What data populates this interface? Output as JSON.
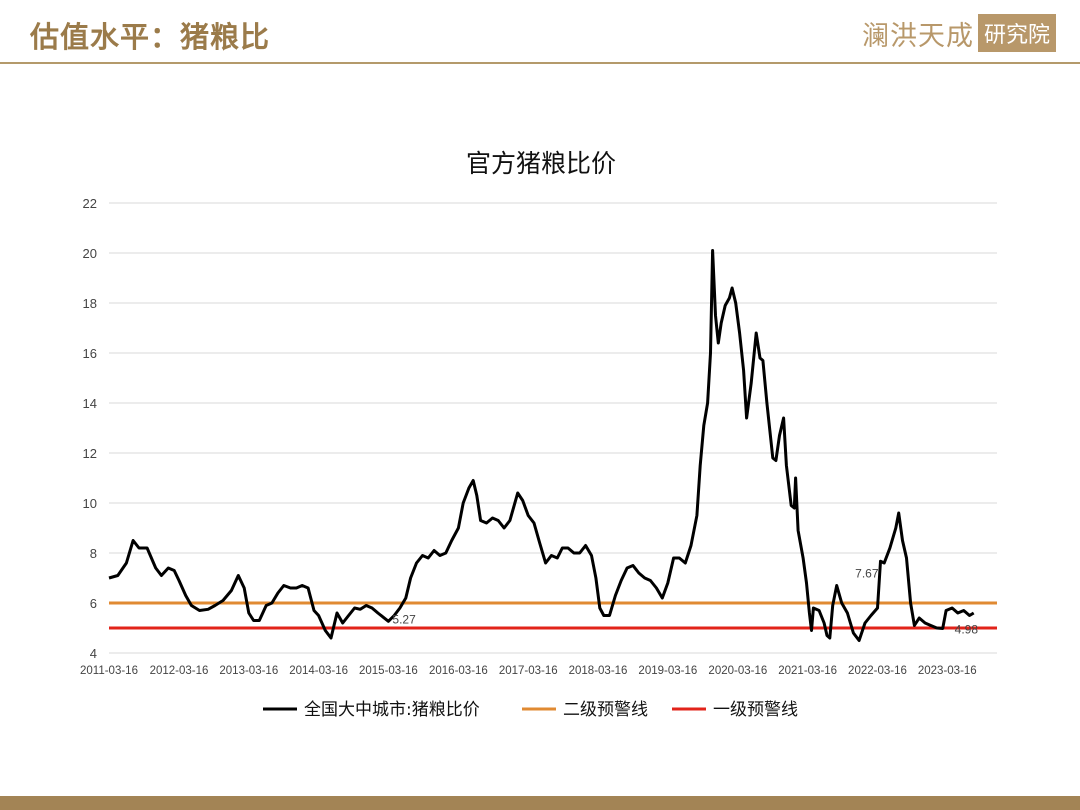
{
  "header": {
    "title": "估值水平：猪粮比",
    "logo_text": "澜洪天成",
    "logo_box": "研究院"
  },
  "chart_data": {
    "type": "line",
    "title": "官方猪粮比价",
    "xlabel": "",
    "ylabel": "",
    "ylim": [
      4,
      22
    ],
    "yticks": [
      4,
      6,
      8,
      10,
      12,
      14,
      16,
      18,
      20,
      22
    ],
    "xlim": [
      "2011-03-16",
      "2023-12-01"
    ],
    "xticks": [
      "2011-03-16",
      "2012-03-16",
      "2013-03-16",
      "2014-03-16",
      "2015-03-16",
      "2016-03-16",
      "2017-03-16",
      "2018-03-16",
      "2019-03-16",
      "2020-03-16",
      "2021-03-16",
      "2022-03-16",
      "2023-03-16"
    ],
    "grid": "horizontal",
    "legend_position": "bottom",
    "series": [
      {
        "name": "全国大中城市:猪粮比价",
        "color": "#000000",
        "points": [
          [
            "2011-03-16",
            7.0
          ],
          [
            "2011-05-01",
            7.1
          ],
          [
            "2011-06-15",
            7.6
          ],
          [
            "2011-07-20",
            8.5
          ],
          [
            "2011-08-20",
            8.2
          ],
          [
            "2011-10-01",
            8.2
          ],
          [
            "2011-11-15",
            7.4
          ],
          [
            "2011-12-15",
            7.1
          ],
          [
            "2012-01-20",
            7.4
          ],
          [
            "2012-02-20",
            7.3
          ],
          [
            "2012-03-16",
            6.9
          ],
          [
            "2012-04-20",
            6.3
          ],
          [
            "2012-05-20",
            5.9
          ],
          [
            "2012-07-01",
            5.7
          ],
          [
            "2012-08-15",
            5.75
          ],
          [
            "2012-09-20",
            5.9
          ],
          [
            "2012-11-01",
            6.1
          ],
          [
            "2012-12-15",
            6.5
          ],
          [
            "2013-01-20",
            7.1
          ],
          [
            "2013-02-20",
            6.6
          ],
          [
            "2013-03-16",
            5.6
          ],
          [
            "2013-04-10",
            5.3
          ],
          [
            "2013-05-10",
            5.3
          ],
          [
            "2013-06-15",
            5.9
          ],
          [
            "2013-07-15",
            6.0
          ],
          [
            "2013-08-15",
            6.4
          ],
          [
            "2013-09-15",
            6.7
          ],
          [
            "2013-10-20",
            6.6
          ],
          [
            "2013-11-20",
            6.6
          ],
          [
            "2013-12-20",
            6.7
          ],
          [
            "2014-01-20",
            6.6
          ],
          [
            "2014-02-20",
            5.7
          ],
          [
            "2014-03-16",
            5.5
          ],
          [
            "2014-04-20",
            4.9
          ],
          [
            "2014-05-20",
            4.6
          ],
          [
            "2014-06-20",
            5.6
          ],
          [
            "2014-07-20",
            5.2
          ],
          [
            "2014-08-20",
            5.5
          ],
          [
            "2014-09-20",
            5.8
          ],
          [
            "2014-10-20",
            5.75
          ],
          [
            "2014-11-20",
            5.9
          ],
          [
            "2014-12-20",
            5.8
          ],
          [
            "2015-01-20",
            5.6
          ],
          [
            "2015-03-16",
            5.27
          ],
          [
            "2015-04-15",
            5.5
          ],
          [
            "2015-05-15",
            5.8
          ],
          [
            "2015-06-15",
            6.2
          ],
          [
            "2015-07-10",
            7.0
          ],
          [
            "2015-08-10",
            7.6
          ],
          [
            "2015-09-10",
            7.9
          ],
          [
            "2015-10-10",
            7.8
          ],
          [
            "2015-11-10",
            8.1
          ],
          [
            "2015-12-10",
            7.9
          ],
          [
            "2016-01-10",
            8.0
          ],
          [
            "2016-02-10",
            8.5
          ],
          [
            "2016-03-16",
            9.0
          ],
          [
            "2016-04-10",
            10.0
          ],
          [
            "2016-05-10",
            10.6
          ],
          [
            "2016-06-01",
            10.9
          ],
          [
            "2016-06-20",
            10.3
          ],
          [
            "2016-07-10",
            9.3
          ],
          [
            "2016-08-10",
            9.2
          ],
          [
            "2016-09-10",
            9.4
          ],
          [
            "2016-10-10",
            9.3
          ],
          [
            "2016-11-10",
            9.0
          ],
          [
            "2016-12-10",
            9.3
          ],
          [
            "2017-01-20",
            10.4
          ],
          [
            "2017-02-15",
            10.1
          ],
          [
            "2017-03-16",
            9.5
          ],
          [
            "2017-04-15",
            9.2
          ],
          [
            "2017-05-15",
            8.4
          ],
          [
            "2017-06-15",
            7.6
          ],
          [
            "2017-07-15",
            7.9
          ],
          [
            "2017-08-15",
            7.8
          ],
          [
            "2017-09-10",
            8.2
          ],
          [
            "2017-10-10",
            8.2
          ],
          [
            "2017-11-10",
            8.0
          ],
          [
            "2017-12-10",
            8.0
          ],
          [
            "2018-01-10",
            8.3
          ],
          [
            "2018-02-10",
            7.9
          ],
          [
            "2018-03-05",
            7.0
          ],
          [
            "2018-03-25",
            5.8
          ],
          [
            "2018-04-15",
            5.5
          ],
          [
            "2018-05-15",
            5.5
          ],
          [
            "2018-06-15",
            6.3
          ],
          [
            "2018-07-15",
            6.9
          ],
          [
            "2018-08-15",
            7.4
          ],
          [
            "2018-09-15",
            7.5
          ],
          [
            "2018-10-15",
            7.2
          ],
          [
            "2018-11-15",
            7.0
          ],
          [
            "2018-12-15",
            6.9
          ],
          [
            "2019-01-15",
            6.6
          ],
          [
            "2019-02-15",
            6.2
          ],
          [
            "2019-03-16",
            6.8
          ],
          [
            "2019-04-15",
            7.8
          ],
          [
            "2019-05-15",
            7.8
          ],
          [
            "2019-06-15",
            7.6
          ],
          [
            "2019-07-15",
            8.3
          ],
          [
            "2019-08-15",
            9.5
          ],
          [
            "2019-09-01",
            11.5
          ],
          [
            "2019-09-20",
            13.1
          ],
          [
            "2019-10-10",
            14.0
          ],
          [
            "2019-10-25",
            16.0
          ],
          [
            "2019-11-05",
            20.1
          ],
          [
            "2019-11-20",
            17.5
          ],
          [
            "2019-12-05",
            16.4
          ],
          [
            "2019-12-20",
            17.2
          ],
          [
            "2020-01-10",
            17.9
          ],
          [
            "2020-02-01",
            18.2
          ],
          [
            "2020-02-15",
            18.6
          ],
          [
            "2020-03-05",
            18.0
          ],
          [
            "2020-03-25",
            16.8
          ],
          [
            "2020-04-15",
            15.3
          ],
          [
            "2020-05-01",
            13.4
          ],
          [
            "2020-05-25",
            14.8
          ],
          [
            "2020-06-20",
            16.8
          ],
          [
            "2020-07-10",
            15.8
          ],
          [
            "2020-07-25",
            15.7
          ],
          [
            "2020-08-15",
            14.0
          ],
          [
            "2020-09-15",
            11.8
          ],
          [
            "2020-10-01",
            11.7
          ],
          [
            "2020-10-20",
            12.7
          ],
          [
            "2020-11-10",
            13.4
          ],
          [
            "2020-11-25",
            11.5
          ],
          [
            "2020-12-20",
            9.9
          ],
          [
            "2021-01-05",
            9.8
          ],
          [
            "2021-01-12",
            11.0
          ],
          [
            "2021-01-25",
            8.9
          ],
          [
            "2021-02-20",
            7.8
          ],
          [
            "2021-03-10",
            6.8
          ],
          [
            "2021-03-25",
            5.6
          ],
          [
            "2021-04-05",
            4.9
          ],
          [
            "2021-04-15",
            5.8
          ],
          [
            "2021-05-15",
            5.7
          ],
          [
            "2021-06-10",
            5.2
          ],
          [
            "2021-06-25",
            4.7
          ],
          [
            "2021-07-10",
            4.6
          ],
          [
            "2021-07-25",
            5.9
          ],
          [
            "2021-08-15",
            6.7
          ],
          [
            "2021-09-10",
            6.0
          ],
          [
            "2021-10-10",
            5.6
          ],
          [
            "2021-11-10",
            4.8
          ],
          [
            "2021-12-10",
            4.5
          ],
          [
            "2022-01-10",
            5.2
          ],
          [
            "2022-02-10",
            5.5
          ],
          [
            "2022-03-16",
            5.8
          ],
          [
            "2022-04-01",
            7.67
          ],
          [
            "2022-04-20",
            7.6
          ],
          [
            "2022-05-20",
            8.2
          ],
          [
            "2022-06-20",
            9.0
          ],
          [
            "2022-07-05",
            9.6
          ],
          [
            "2022-07-25",
            8.5
          ],
          [
            "2022-08-15",
            7.8
          ],
          [
            "2022-09-05",
            6.0
          ],
          [
            "2022-09-25",
            5.1
          ],
          [
            "2022-10-20",
            5.4
          ],
          [
            "2022-11-20",
            5.2
          ],
          [
            "2022-12-20",
            5.1
          ],
          [
            "2023-01-20",
            5.0
          ],
          [
            "2023-02-20",
            4.98
          ],
          [
            "2023-03-10",
            5.7
          ],
          [
            "2023-04-10",
            5.8
          ],
          [
            "2023-05-10",
            5.6
          ],
          [
            "2023-06-10",
            5.7
          ],
          [
            "2023-07-10",
            5.5
          ],
          [
            "2023-08-01",
            5.6
          ]
        ]
      },
      {
        "name": "二级预警线",
        "color": "#e08a32",
        "constant": 6
      },
      {
        "name": "一级预警线",
        "color": "#e2231a",
        "constant": 5
      }
    ],
    "annotations": [
      {
        "text": "5.27",
        "x": "2015-03-16",
        "y": 5.27
      },
      {
        "text": "7.67",
        "x": "2022-04-01",
        "y": 7.67
      },
      {
        "text": "4.98",
        "x": "2023-02-20",
        "y": 4.98
      }
    ]
  }
}
